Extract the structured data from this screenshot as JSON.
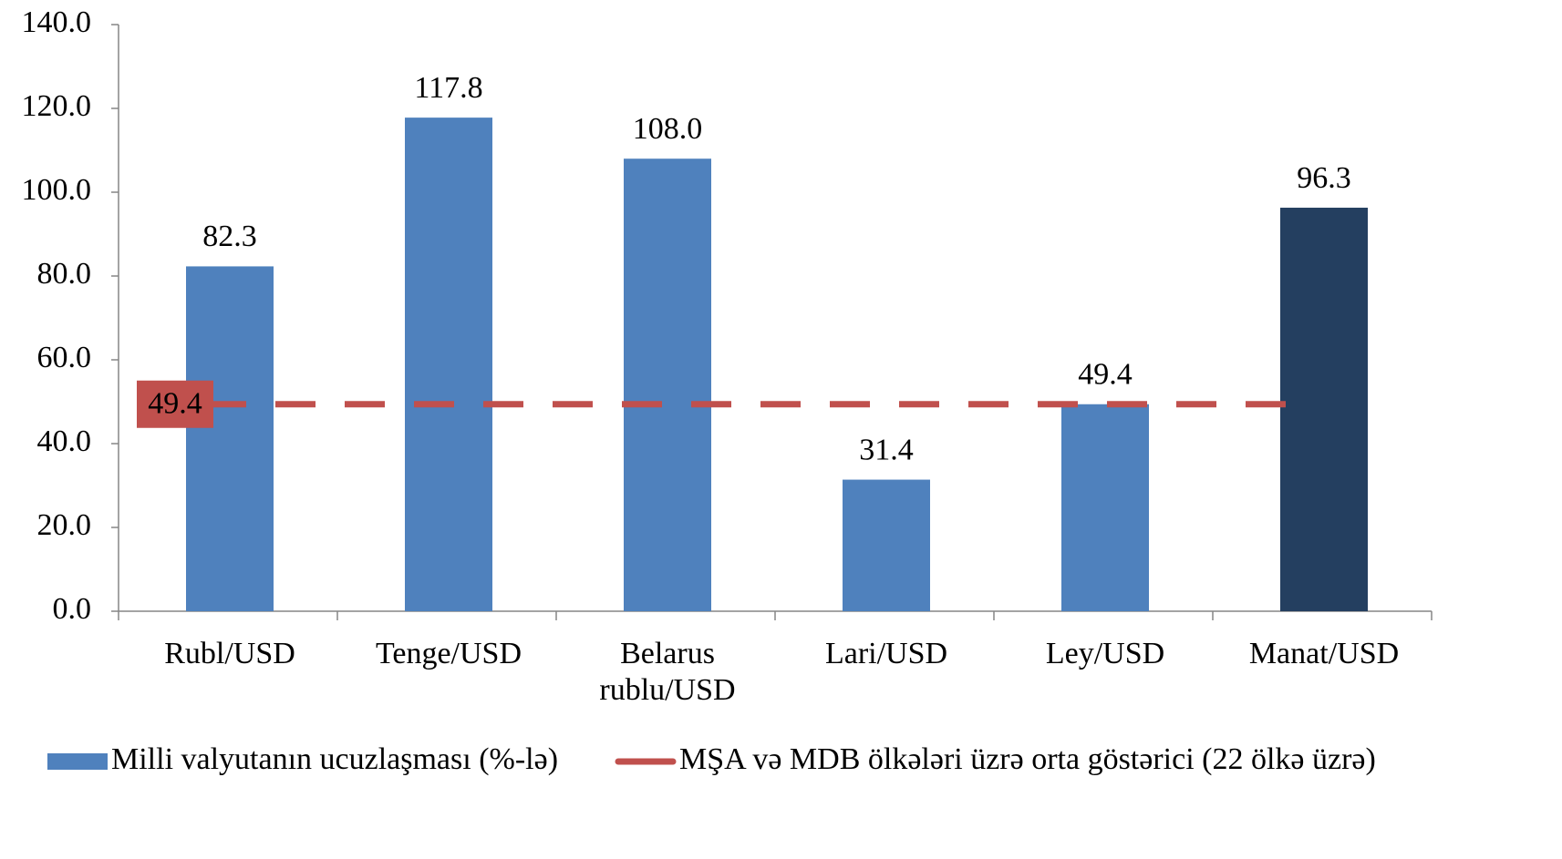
{
  "chart_data": {
    "type": "bar",
    "categories": [
      "Rubl/USD",
      "Tenge/USD",
      "Belarus rublu/USD",
      "Lari/USD",
      "Ley/USD",
      "Manat/USD"
    ],
    "series": [
      {
        "name": "Milli valyutanın ucuzlaşması (%-lə)",
        "color": "#4f81bd",
        "colors": [
          "#4f81bd",
          "#4f81bd",
          "#4f81bd",
          "#4f81bd",
          "#4f81bd",
          "#243f60"
        ],
        "values": [
          82.3,
          117.8,
          108.0,
          31.4,
          49.4,
          96.3
        ],
        "value_labels": [
          "82.3",
          "117.8",
          "108.0",
          "31.4",
          "49.4",
          "96.3"
        ]
      }
    ],
    "reference_line": {
      "name": "MŞA və MDB ölkələri üzrə orta göstərici (22 ölkə üzrə)",
      "color": "#c0504d",
      "value": 49.4,
      "value_label": "49.4"
    },
    "ylim": [
      0,
      140
    ],
    "yticks": [
      {
        "value": 0,
        "label": "0.0"
      },
      {
        "value": 20,
        "label": "20.0"
      },
      {
        "value": 40,
        "label": "40.0"
      },
      {
        "value": 60,
        "label": "60.0"
      },
      {
        "value": 80,
        "label": "80.0"
      },
      {
        "value": 100,
        "label": "100.0"
      },
      {
        "value": 120,
        "label": "120.0"
      },
      {
        "value": 140,
        "label": "140.0"
      }
    ],
    "legend": "bottom"
  }
}
